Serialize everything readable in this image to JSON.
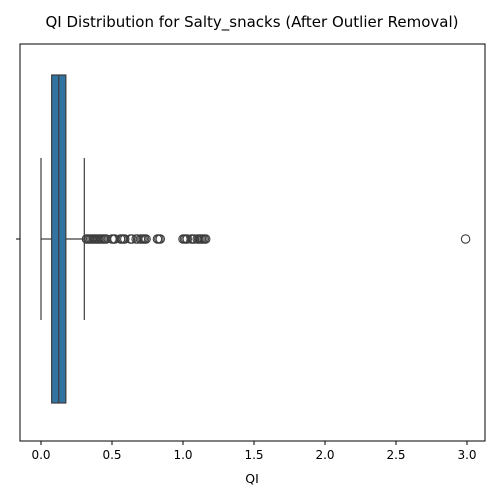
{
  "chart_data": {
    "type": "box",
    "title": "QI Distribution for Salty_snacks (After Outlier Removal)",
    "xlabel": "QI",
    "ylabel": "",
    "xlim": [
      -0.15,
      3.15
    ],
    "xticks": [
      "0.0",
      "0.5",
      "1.0",
      "1.5",
      "2.0",
      "2.5",
      "3.0"
    ],
    "xtick_values": [
      0.0,
      0.5,
      1.0,
      1.5,
      2.0,
      2.5,
      3.0
    ],
    "grid": false,
    "orientation": "horizontal",
    "box": {
      "whisker_low": 0.0,
      "q1": 0.075,
      "median": 0.125,
      "q3": 0.175,
      "whisker_high": 0.305
    },
    "outliers": [
      0.32,
      0.33,
      0.34,
      0.35,
      0.36,
      0.37,
      0.38,
      0.39,
      0.4,
      0.41,
      0.42,
      0.43,
      0.44,
      0.45,
      0.46,
      0.5,
      0.51,
      0.52,
      0.56,
      0.57,
      0.58,
      0.59,
      0.63,
      0.64,
      0.67,
      0.68,
      0.7,
      0.71,
      0.72,
      0.73,
      0.74,
      0.82,
      0.83,
      0.84,
      1.0,
      1.01,
      1.02,
      1.03,
      1.06,
      1.07,
      1.08,
      1.1,
      1.11,
      1.12,
      1.13,
      1.14,
      1.15,
      1.16,
      2.99
    ],
    "box_color": "#3274a1",
    "line_color": "#3d3d3d"
  }
}
